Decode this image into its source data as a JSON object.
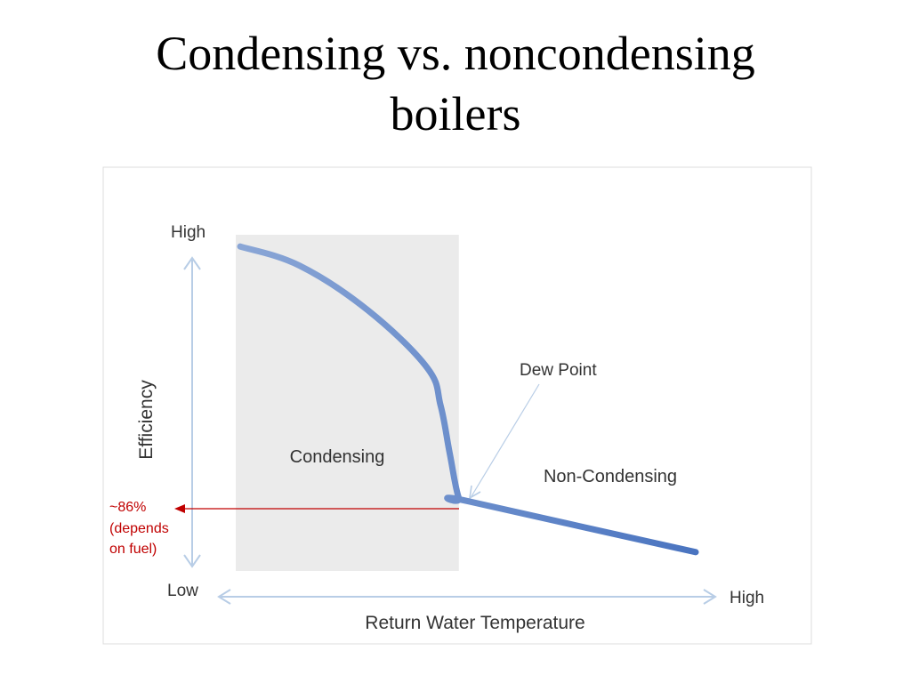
{
  "slide": {
    "title_line1": "Condensing vs. noncondensing",
    "title_line2": "boilers"
  },
  "chart_data": {
    "type": "line",
    "xlabel": "Return Water Temperature",
    "ylabel": "Efficiency",
    "x_ticks": {
      "low": "Low",
      "high": "High"
    },
    "y_ticks": {
      "low": "Low",
      "high": "High"
    },
    "regions": [
      {
        "name": "Condensing",
        "shaded": true
      },
      {
        "name": "Non-Condensing",
        "shaded": false
      }
    ],
    "annotations": {
      "dew_point": "Dew Point",
      "efficiency_note_line1": "~86%",
      "efficiency_note_line2": "(depends",
      "efficiency_note_line3": "on fuel)"
    },
    "series": [
      {
        "x": [
          0.0,
          0.13,
          0.28,
          0.41,
          0.44,
          0.46,
          0.48,
          0.5,
          1.0
        ],
        "y": [
          0.98,
          0.92,
          0.78,
          0.6,
          0.48,
          0.33,
          0.19,
          0.18,
          0.02
        ]
      }
    ],
    "colors": {
      "curve": "#6b8fc9",
      "axis_arrows": "#b8cde6",
      "shade": "#ebebeb",
      "annotation": "#c00000"
    },
    "grid": false
  }
}
